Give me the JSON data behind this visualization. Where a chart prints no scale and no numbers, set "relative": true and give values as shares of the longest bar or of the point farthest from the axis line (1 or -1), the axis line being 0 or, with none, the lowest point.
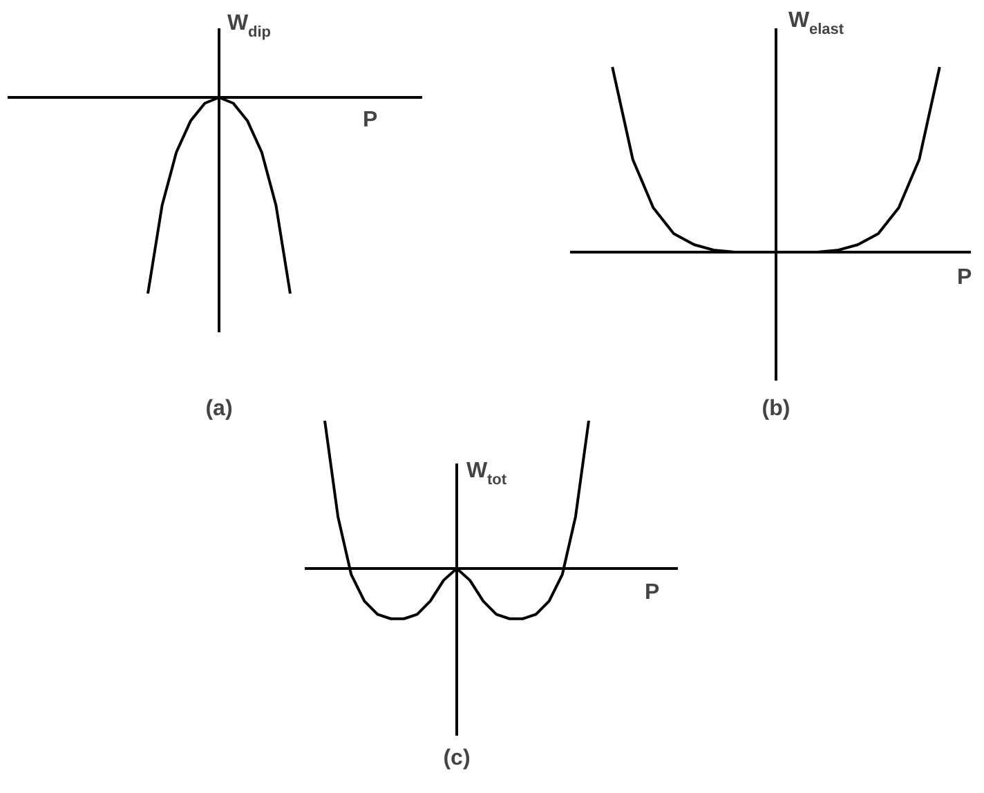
{
  "chart_data": [
    {
      "type": "line",
      "relative": true,
      "title": "(a)",
      "xlabel": "P",
      "ylabel": "W$_{dip}$",
      "color": "#000000",
      "categories": [
        null,
        null,
        null,
        null,
        null,
        null,
        null,
        null,
        null,
        null,
        null
      ],
      "values": [
        -1,
        -0.55,
        -0.28,
        -0.12,
        -0.03,
        0,
        -0.03,
        -0.12,
        -0.28,
        -0.55,
        -1
      ]
    },
    {
      "type": "line",
      "relative": true,
      "title": "(b)",
      "xlabel": "P",
      "ylabel": "W$_{elast}$",
      "color": "#000000",
      "categories": [
        null,
        null,
        null,
        null,
        null,
        null,
        null,
        null,
        null,
        null,
        null,
        null,
        null,
        null,
        null,
        null,
        null
      ],
      "values": [
        1,
        0.5,
        0.24,
        0.1,
        0.04,
        0.01,
        0,
        0,
        0,
        0,
        0,
        0.01,
        0.04,
        0.1,
        0.24,
        0.5,
        1
      ]
    },
    {
      "type": "line",
      "relative": true,
      "title": "(c)",
      "xlabel": "P",
      "ylabel": "W$_{tot}$",
      "color": "#000000",
      "categories": [
        null,
        null,
        null,
        null,
        null,
        null,
        null,
        null,
        null,
        null,
        null,
        null,
        null,
        null,
        null,
        null,
        null,
        null,
        null,
        null,
        null
      ],
      "values": [
        1,
        0.35,
        -0.04,
        -0.22,
        -0.31,
        -0.34,
        -0.34,
        -0.31,
        -0.22,
        -0.08,
        0,
        -0.08,
        -0.22,
        -0.31,
        -0.34,
        -0.34,
        -0.31,
        -0.22,
        -0.04,
        0.35,
        1
      ]
    }
  ]
}
